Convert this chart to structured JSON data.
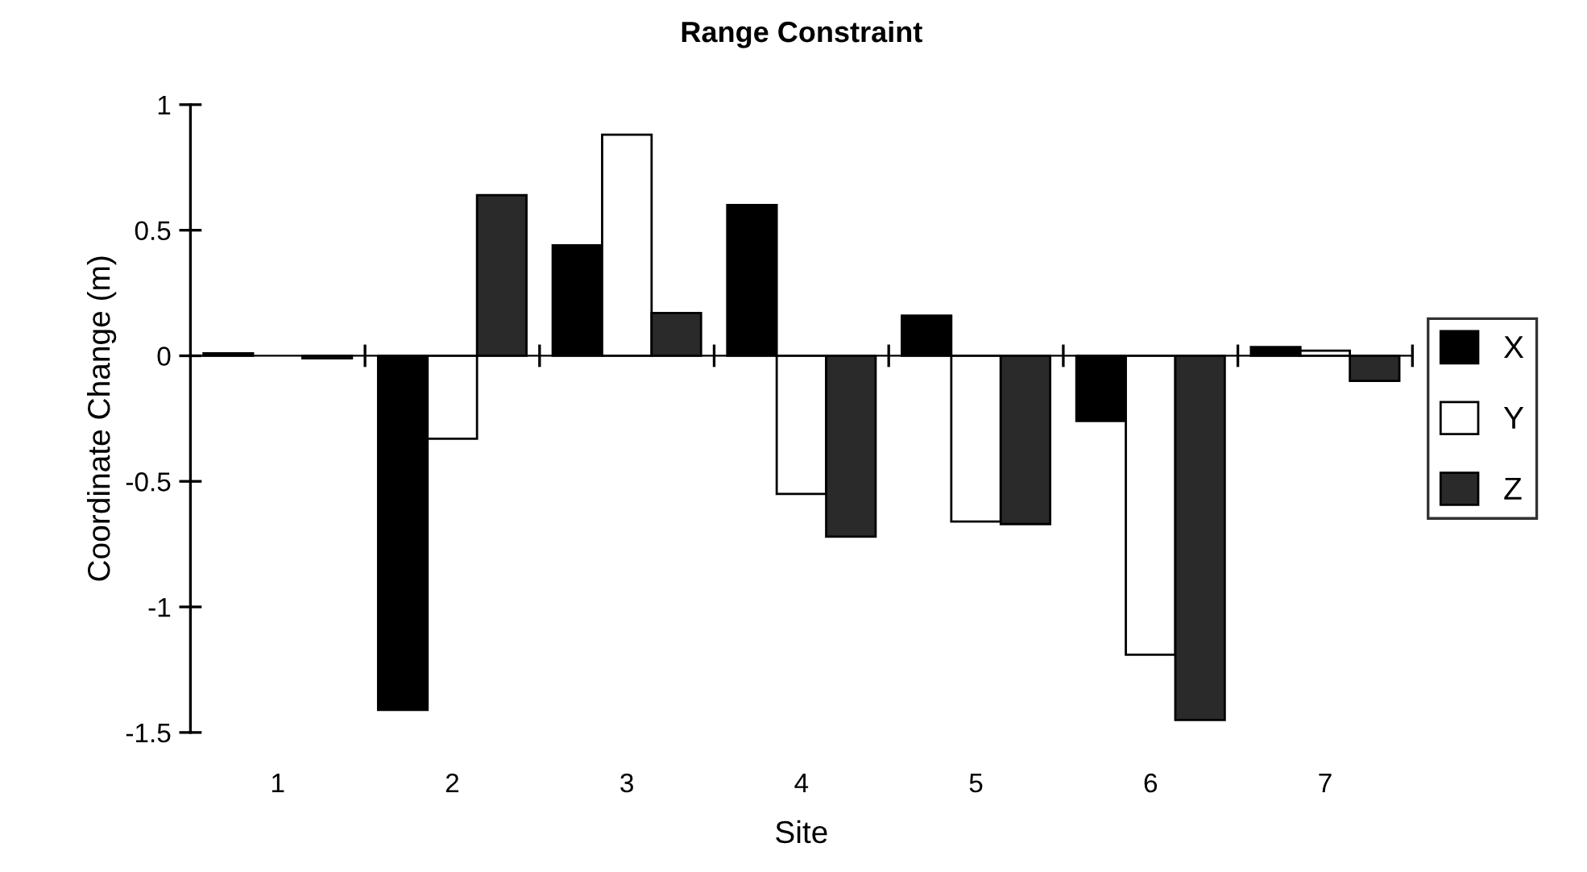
{
  "chart_data": {
    "type": "bar",
    "title": "Range Constraint",
    "xlabel": "Site",
    "ylabel": "Coordinate Change (m)",
    "categories": [
      "1",
      "2",
      "3",
      "4",
      "5",
      "6",
      "7"
    ],
    "series": [
      {
        "name": "X",
        "color": "#000000",
        "values": [
          0.01,
          -1.41,
          0.44,
          0.6,
          0.16,
          -0.26,
          0.035
        ]
      },
      {
        "name": "Y",
        "color": "#ffffff",
        "values": [
          null,
          -0.33,
          0.88,
          -0.55,
          -0.66,
          -1.19,
          0.02
        ]
      },
      {
        "name": "Z",
        "color": "#2a2a2a",
        "values": [
          -0.01,
          0.64,
          0.17,
          -0.72,
          -0.67,
          -1.45,
          -0.1
        ]
      }
    ],
    "ylim": [
      -1.5,
      1
    ],
    "yticks": [
      -1.5,
      -1,
      -0.5,
      0,
      0.5,
      1
    ],
    "legend": "right"
  }
}
